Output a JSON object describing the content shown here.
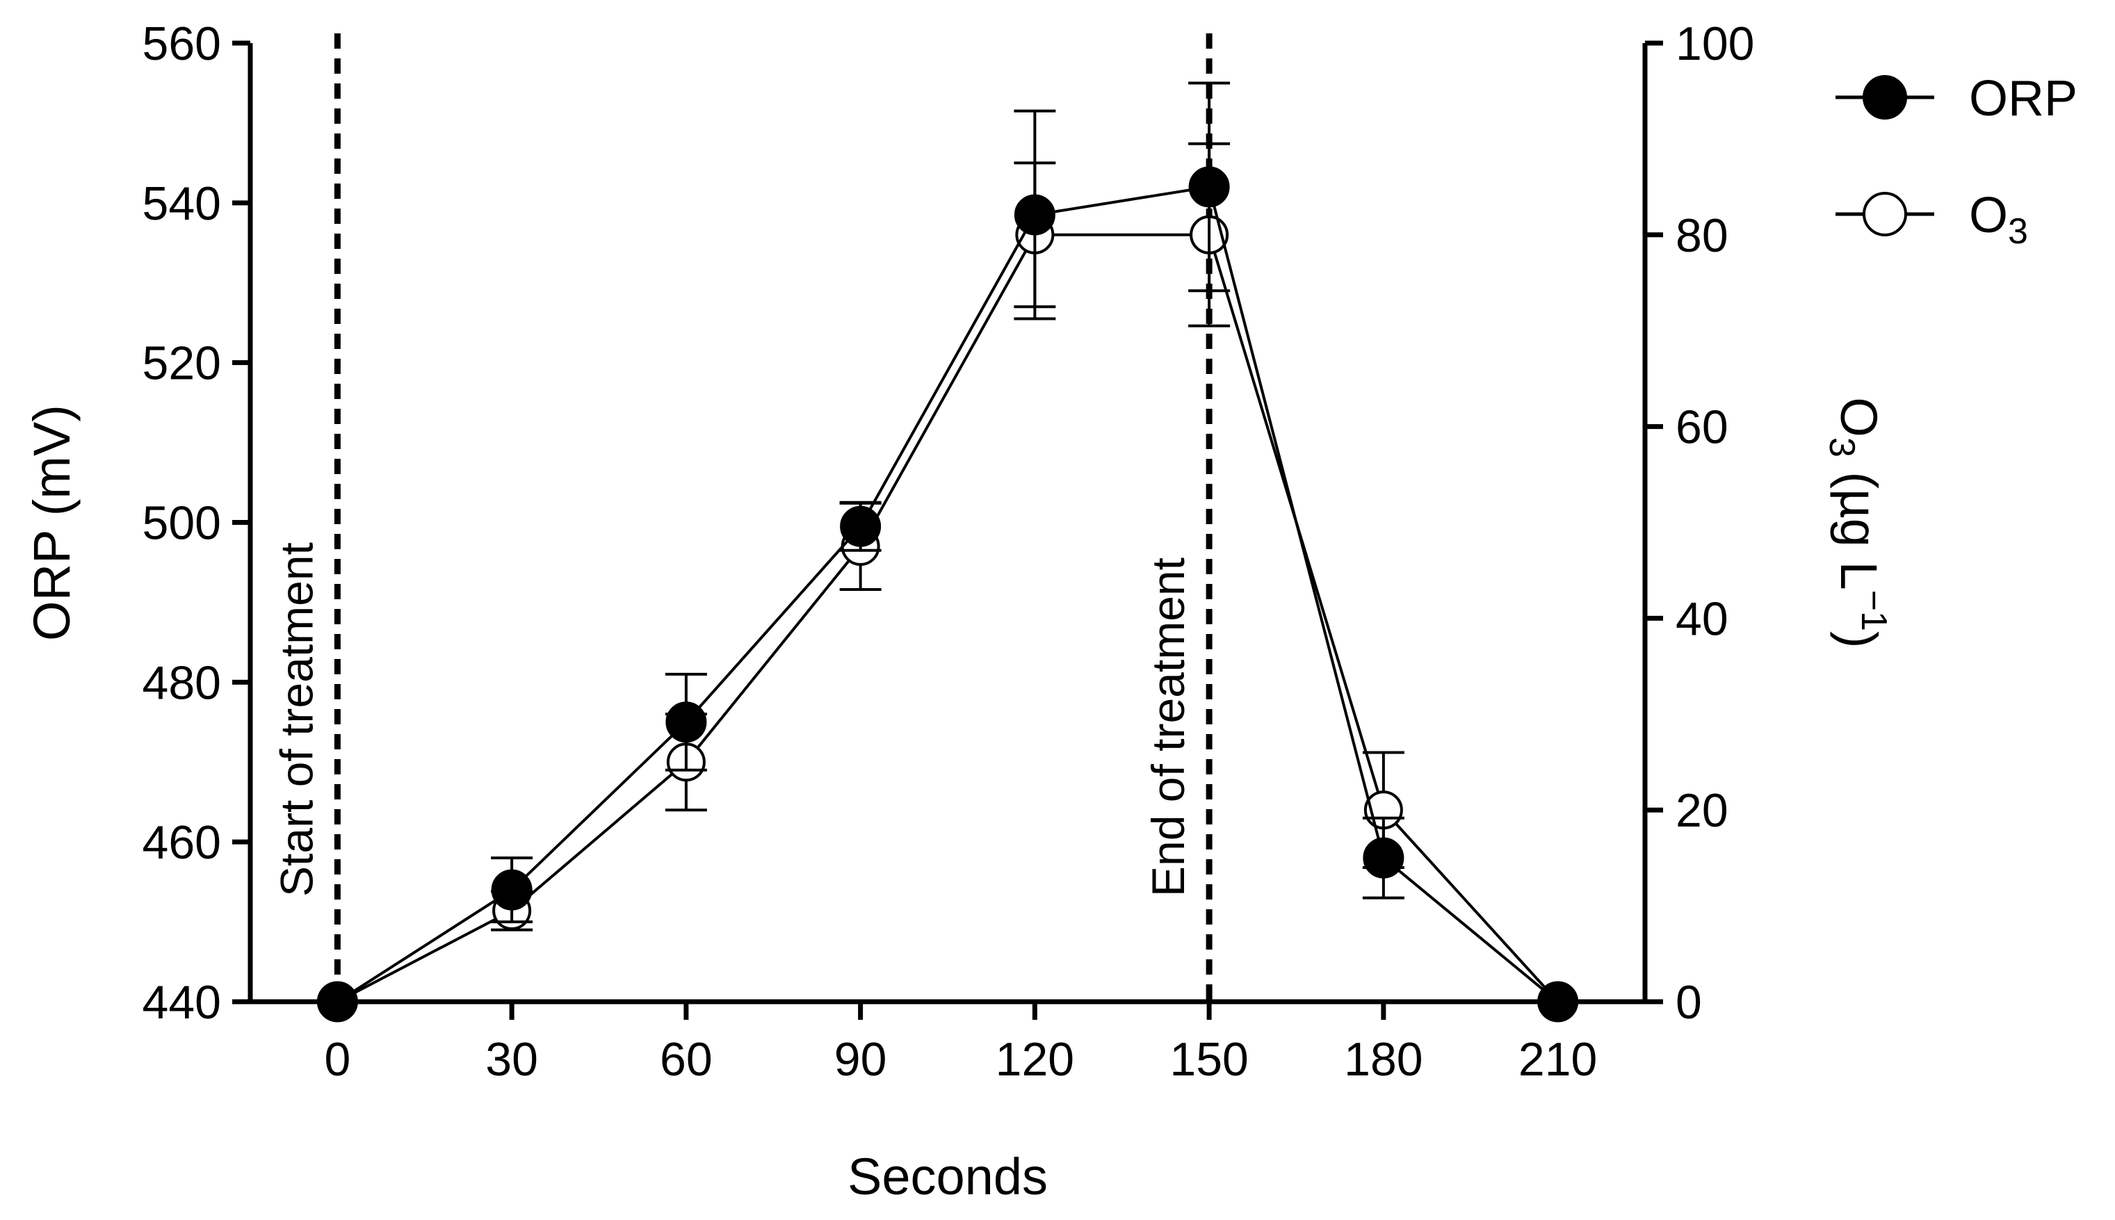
{
  "chart_data": {
    "type": "line",
    "title": "",
    "xlabel": "Seconds",
    "ylabel_left": "ORP (mV)",
    "ylabel_right": {
      "base": "O",
      "sub": "3",
      "rest": " (µg L",
      "sup": "−1",
      "close": ")"
    },
    "x": [
      0,
      30,
      60,
      90,
      120,
      150,
      180,
      210
    ],
    "xlim": [
      -15,
      225
    ],
    "x_ticks": [
      0,
      30,
      60,
      90,
      120,
      150,
      180,
      210
    ],
    "x_tick_labels": [
      "0",
      "30",
      "60",
      "90",
      "120",
      "150",
      "180",
      "210"
    ],
    "ylim_left": [
      440,
      560
    ],
    "y_left_ticks": [
      440,
      460,
      480,
      500,
      520,
      540,
      560
    ],
    "y_left_tick_labels": [
      "440",
      "460",
      "480",
      "500",
      "520",
      "540",
      "560"
    ],
    "ylim_right": [
      0,
      100
    ],
    "y_right_ticks": [
      0,
      20,
      40,
      60,
      80,
      100
    ],
    "y_right_tick_labels": [
      "0",
      "20",
      "40",
      "60",
      "80",
      "100"
    ],
    "series": [
      {
        "name": "ORP",
        "axis": "left",
        "marker": "filled-circle",
        "values": [
          440,
          454,
          475,
          499.5,
          538.5,
          542,
          458,
          440
        ],
        "error": [
          0,
          4,
          6,
          3,
          13,
          13,
          5,
          0
        ]
      },
      {
        "name": "O3",
        "legend_base": "O",
        "legend_sub": "3",
        "axis": "right",
        "marker": "open-circle",
        "values": [
          0,
          9.5,
          25,
          47.5,
          80,
          80,
          20,
          0
        ],
        "error": [
          0,
          2,
          5,
          4.5,
          7.5,
          9.5,
          6,
          0
        ]
      }
    ],
    "annotations": [
      {
        "x": 0,
        "label": "Start of treatment"
      },
      {
        "x": 150,
        "label": "End of treatment"
      }
    ],
    "legend_position": "top-right",
    "grid": false
  }
}
